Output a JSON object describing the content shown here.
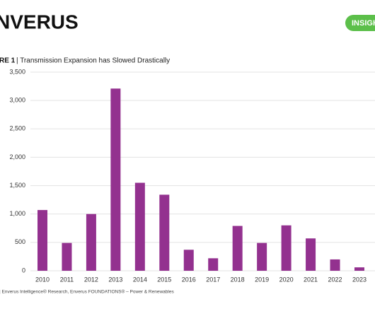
{
  "header": {
    "logo": "NVERUS",
    "badge": "INSIGH"
  },
  "chart_data": {
    "type": "bar",
    "figure_label": "RE 1",
    "title": "| Transmission Expansion has Slowed Drastically",
    "source": "| Enverus Intelligence® Research, Enverus FOUNDATIONS® – Power & Renewables",
    "categories": [
      "2010",
      "2011",
      "2012",
      "2013",
      "2014",
      "2015",
      "2016",
      "2017",
      "2018",
      "2019",
      "2020",
      "2021",
      "2022",
      "2023"
    ],
    "values": [
      1070,
      490,
      1000,
      3210,
      1550,
      1340,
      370,
      220,
      790,
      490,
      800,
      570,
      200,
      60
    ],
    "color": "#93318f",
    "ylim": [
      0,
      3500
    ],
    "yticks": [
      0,
      500,
      {
        "value": 1000,
        "label": "1,000"
      },
      {
        "value": 1500,
        "label": "1,500"
      },
      {
        "value": 2000,
        "label": "2,000"
      },
      {
        "value": 2500,
        "label": "2,500"
      },
      {
        "value": 3000,
        "label": "3,000"
      },
      {
        "value": 3500,
        "label": "3,500"
      }
    ],
    "grid": true
  }
}
